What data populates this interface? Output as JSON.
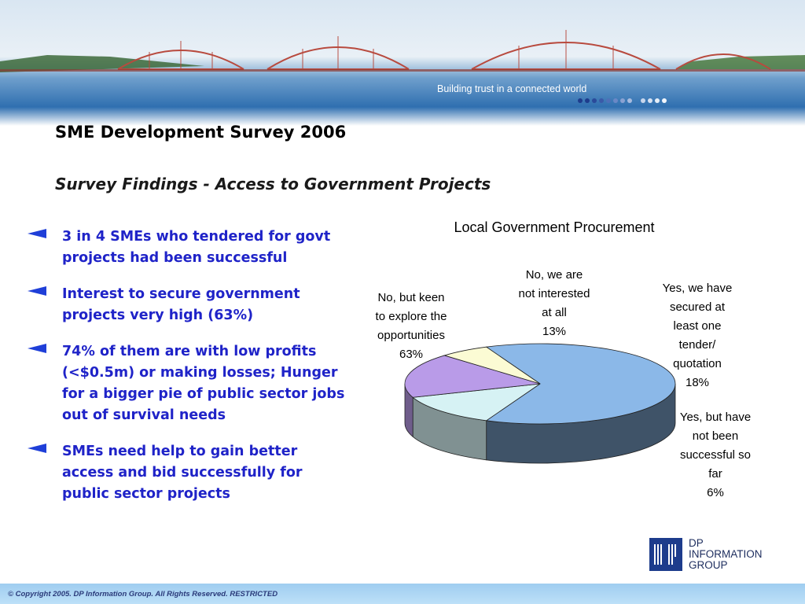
{
  "header": {
    "tagline": "Building trust in a connected world"
  },
  "slide": {
    "title": "SME Development Survey 2006",
    "subtitle": "Survey Findings  -  Access to Government Projects"
  },
  "bullets": [
    "3 in 4 SMEs who tendered for govt projects had been successful",
    "Interest to secure government projects very high (63%)",
    "74% of them are with low profits (<$0.5m) or making losses; Hunger for a bigger pie of public sector jobs out of survival needs",
    "SMEs need help to gain better access and bid successfully for public sector projects"
  ],
  "colors": {
    "bullet_text": "#1f23c8",
    "bullet_arrow": "#1f3fd8"
  },
  "chart_data": {
    "type": "pie",
    "title": "Local Government Procurement",
    "slices": [
      {
        "label_lines": [
          "No, but keen",
          "to explore the",
          "opportunities"
        ],
        "value_label": "63%",
        "value": 63,
        "color": "#8bb8e8"
      },
      {
        "label_lines": [
          "No, we are",
          "not interested",
          "at all"
        ],
        "value_label": "13%",
        "value": 13,
        "color": "#d6f2f4"
      },
      {
        "label_lines": [
          "Yes, we have",
          "secured at",
          "least one",
          "tender/",
          "quotation"
        ],
        "value_label": "18%",
        "value": 18,
        "color": "#b99be8"
      },
      {
        "label_lines": [
          "Yes, but have",
          "not been",
          "successful so",
          "far"
        ],
        "value_label": "6%",
        "value": 6,
        "color": "#fbfbd4"
      }
    ],
    "legend": "none"
  },
  "logo": {
    "mark": "DP",
    "lines": [
      "DP",
      "INFORMATION",
      "GROUP"
    ]
  },
  "footer": {
    "copyright": "© Copyright 2005. DP Information Group. All Rights Reserved. RESTRICTED"
  }
}
